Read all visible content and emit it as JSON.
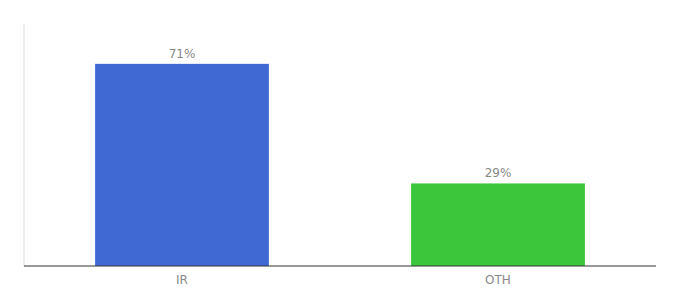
{
  "chart_data": {
    "type": "bar",
    "categories": [
      "IR",
      "OTH"
    ],
    "values": [
      71,
      29
    ],
    "value_labels": [
      "71%",
      "29%"
    ],
    "colors": [
      "#4169d4",
      "#3cc63c"
    ],
    "ylim": [
      0,
      85
    ],
    "data_labels": true,
    "tick_labels": "x",
    "grid": false
  }
}
